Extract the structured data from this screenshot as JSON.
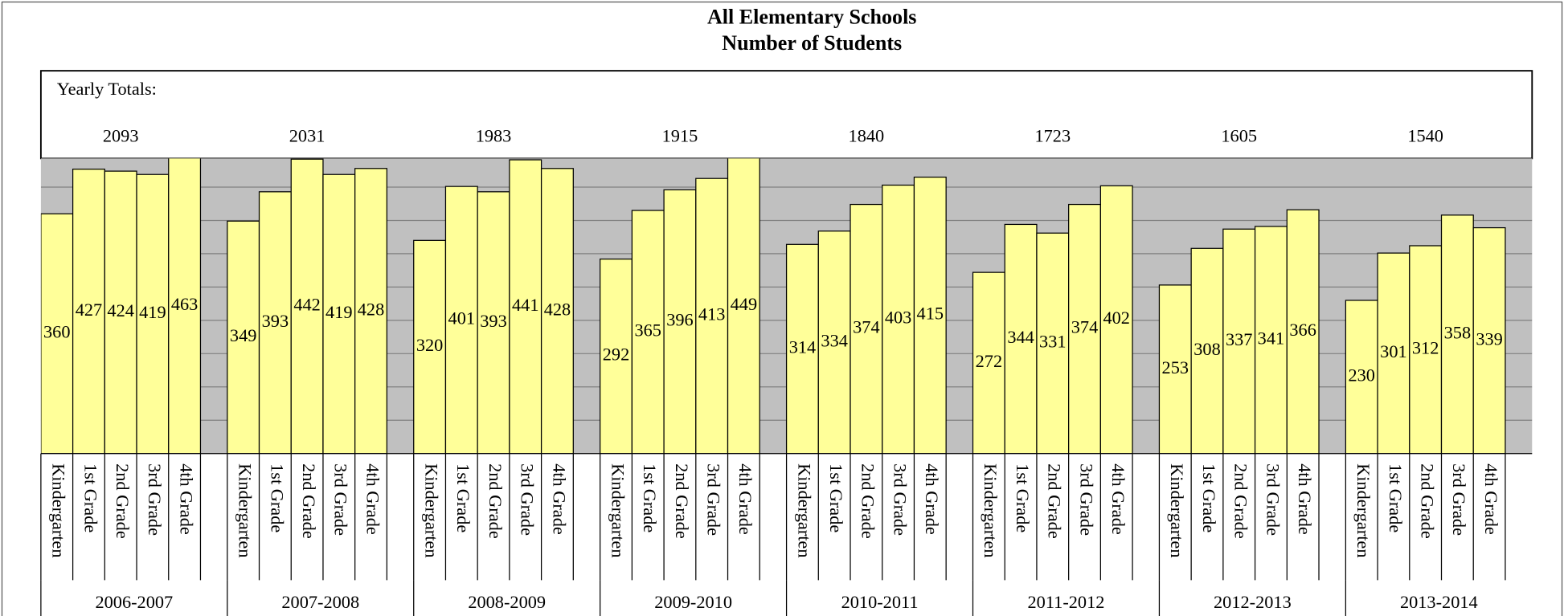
{
  "chart_data": {
    "type": "bar",
    "title": "All Elementary Schools",
    "subtitle": "Number of Students",
    "totals_label": "Yearly Totals:",
    "categories": [
      "Kindergarten",
      "1st Grade",
      "2nd Grade",
      "3rd Grade",
      "4th Grade"
    ],
    "color": "#ffff99",
    "background": "#c0c0c0",
    "grid": true,
    "ylim": [
      0,
      443
    ],
    "yticks": [
      0,
      50,
      100,
      150,
      200,
      250,
      300,
      350,
      400
    ],
    "series": [
      {
        "name": "2006-2007",
        "total": 2093,
        "values": [
          360,
          427,
          424,
          419,
          463
        ]
      },
      {
        "name": "2007-2008",
        "total": 2031,
        "values": [
          349,
          393,
          442,
          419,
          428
        ]
      },
      {
        "name": "2008-2009",
        "total": 1983,
        "values": [
          320,
          401,
          393,
          441,
          428
        ]
      },
      {
        "name": "2009-2010",
        "total": 1915,
        "values": [
          292,
          365,
          396,
          413,
          449
        ]
      },
      {
        "name": "2010-2011",
        "total": 1840,
        "values": [
          314,
          334,
          374,
          403,
          415
        ]
      },
      {
        "name": "2011-2012",
        "total": 1723,
        "values": [
          272,
          344,
          331,
          374,
          402
        ]
      },
      {
        "name": "2012-2013",
        "total": 1605,
        "values": [
          253,
          308,
          337,
          341,
          366
        ]
      },
      {
        "name": "2013-2014",
        "total": 1540,
        "values": [
          230,
          301,
          312,
          358,
          339
        ]
      }
    ]
  }
}
